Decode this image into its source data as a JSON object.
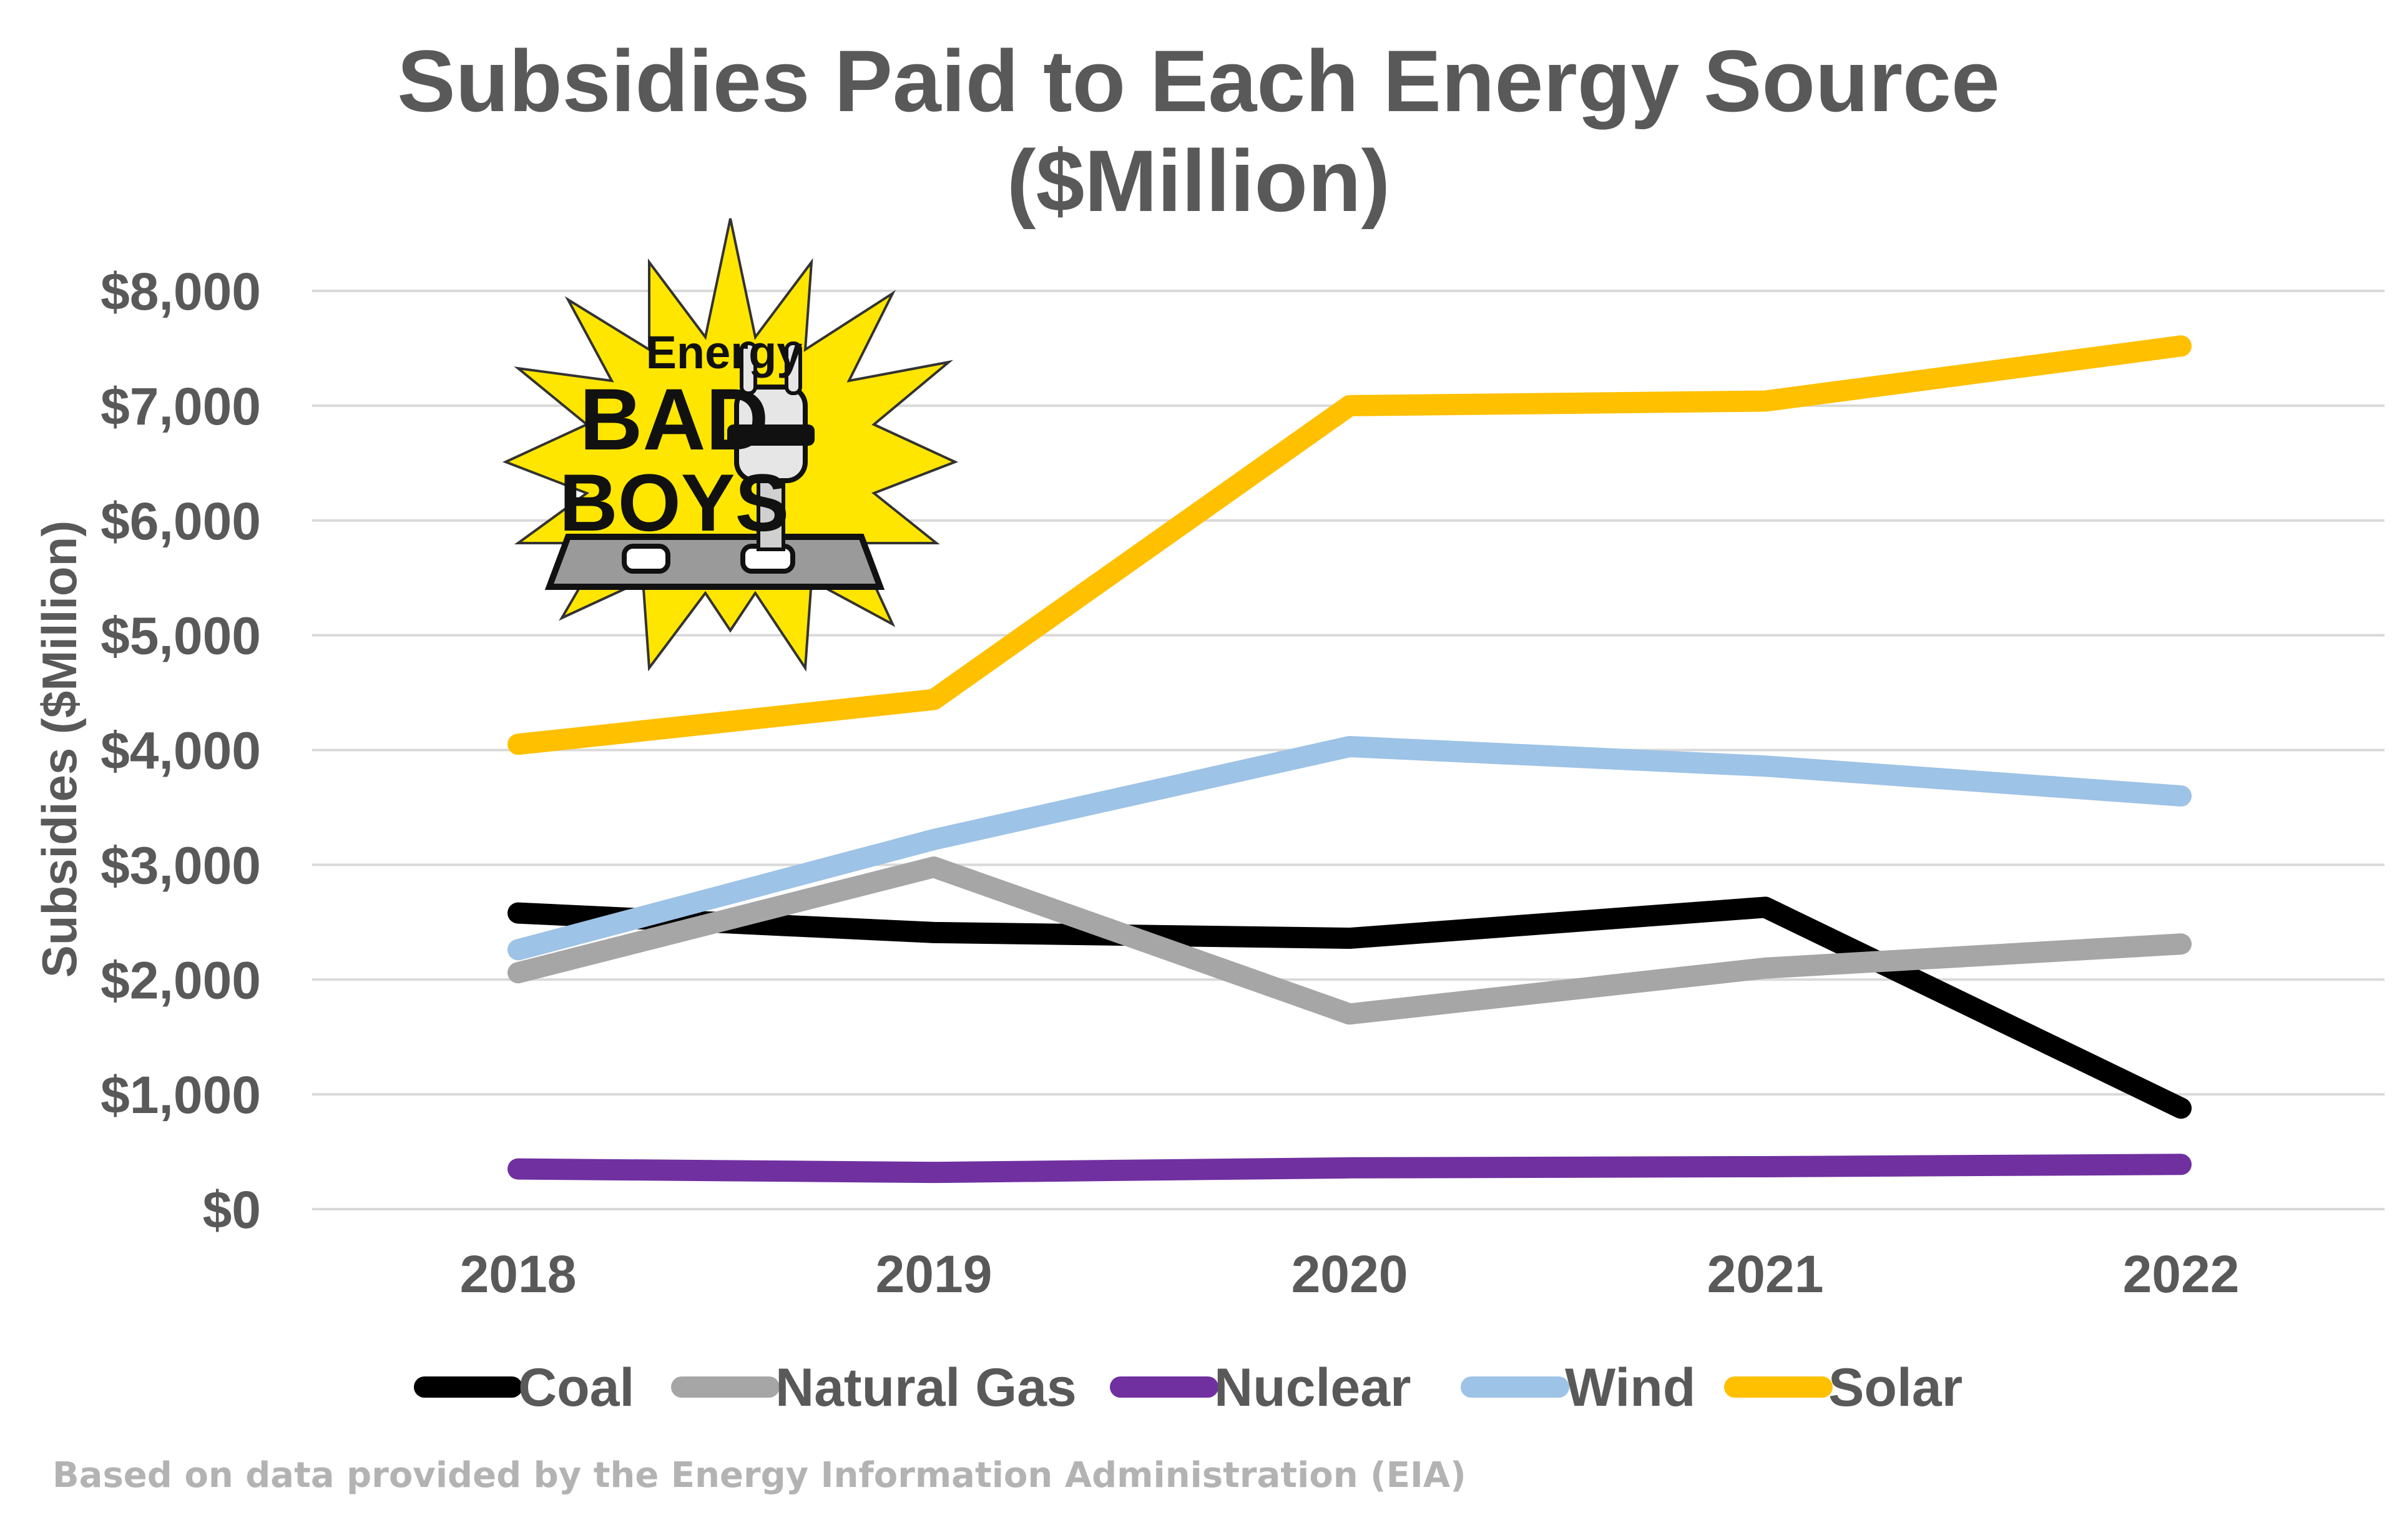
{
  "chart_data": {
    "type": "line",
    "title_line1": "Subsidies Paid to Each Energy Source",
    "title_line2": "($Million)",
    "ylabel": "Subsidies ($Million)",
    "xlabel": "",
    "categories": [
      "2018",
      "2019",
      "2020",
      "2021",
      "2022"
    ],
    "ylim": [
      0,
      8000
    ],
    "yticks": [
      0,
      1000,
      2000,
      3000,
      4000,
      5000,
      6000,
      7000,
      8000
    ],
    "ytick_labels": [
      "$0",
      "$1,000",
      "$2,000",
      "$3,000",
      "$4,000",
      "$5,000",
      "$6,000",
      "$7,000",
      "$8,000"
    ],
    "grid": true,
    "legend_position": "bottom",
    "series": [
      {
        "name": "Coal",
        "color": "#000000",
        "values": [
          2580,
          2410,
          2360,
          2630,
          880
        ]
      },
      {
        "name": "Natural Gas",
        "color": "#a6a6a6",
        "values": [
          2060,
          2980,
          1700,
          2100,
          2310
        ]
      },
      {
        "name": "Nuclear",
        "color": "#7030a0",
        "values": [
          350,
          320,
          360,
          370,
          390
        ]
      },
      {
        "name": "Wind",
        "color": "#9dc3e6",
        "values": [
          2260,
          3220,
          4030,
          3860,
          3600
        ]
      },
      {
        "name": "Solar",
        "color": "#ffc000",
        "values": [
          4050,
          4440,
          7000,
          7040,
          7520
        ]
      }
    ],
    "source_note": "Based on data provided by the Energy Information Administration (EIA)",
    "logo": {
      "line1": "Energy",
      "line2": "BAD",
      "line3": "BOYS"
    }
  }
}
